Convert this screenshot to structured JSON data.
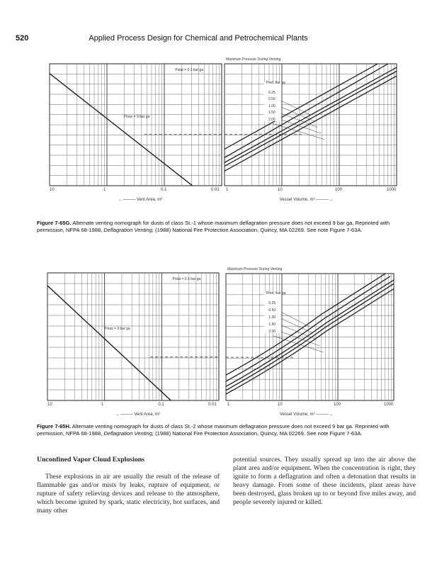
{
  "header": {
    "page_number": "520",
    "running_title": "Applied Process Design for Chemical and Petrochemical Plants"
  },
  "figures": [
    {
      "id": "7-65G",
      "chart_title": "Maximum Pressure During Venting",
      "left_ticks": [
        "10",
        "1",
        "0.1",
        "0.01"
      ],
      "right_ticks": [
        "1",
        "10",
        "100",
        "1000"
      ],
      "left_axis_label": "Vent Area, m²",
      "right_axis_label": "Vessel Volume, m³",
      "pstat_label": "Pstat = 0.1 bar ga",
      "pmax_label": "Pmax = 9 bar ga",
      "pred_header": "Pred, bar ga",
      "pred_values": [
        "0.25",
        "0.50",
        "1.00",
        "1.50",
        "2.00"
      ],
      "caption_label": "Figure 7-65G.",
      "caption_text": " Alternate venting nomograph for dusts of class St.-1 whose maximum deflagration pressure does not exceed 9 bar ga. Reprinted with permission, NFPA 68-1988, ",
      "caption_italic": "Deflagration Venting,",
      "caption_tail": " (1988) National Fire Protection Association, Quincy, MA 02269. See note Figure 7-63A."
    },
    {
      "id": "7-65H",
      "chart_title": "Maximum Pressure During Venting",
      "left_ticks": [
        "10",
        "1",
        "0.1",
        "0.01"
      ],
      "right_ticks": [
        "1",
        "10",
        "100",
        "1000"
      ],
      "left_axis_label": "Vent Area, m²",
      "right_axis_label": "Vessel Volume, m³",
      "pstat_label": "Pstat = 0.1 bar ga",
      "pmax_label": "Pmax = 9 bar ga",
      "pred_header": "Pred, bar ga",
      "pred_values": [
        "0.25",
        "0.50",
        "1.00",
        "1.50",
        "2.00"
      ],
      "caption_label": "Figure 7-65H.",
      "caption_text": " Alternate venting nomograph for dusts of class St.-2 whose maximum deflagration pressure does not exceed 9 bar ga. Reprinted with permission, NFPA 68-1988, ",
      "caption_italic": "Deflagration Venting,",
      "caption_tail": " (1988) National Fire Protection Association, Quincy, MA 02269. See note Figure 7-63A."
    }
  ],
  "body": {
    "heading": "Unconfined Vapor Cloud Explosions",
    "para1": "These explosions in air are usually the result of the release of flammable gas and/or mists by leaks, rupture of equipment, or rupture of safety relieving devices and release to the atmosphere, which become ignited by spark, static electricity, hot surfaces, and many other",
    "para2": "potential sources. They usually spread up into the air above the plant area and/or equipment. When the concentration is right, they ignite to form a deflagration and often a detonation that results in heavy damage. From some of these incidents, plant areas have been destroyed, glass broken up to or beyond five miles away, and people severely injured or killed."
  }
}
